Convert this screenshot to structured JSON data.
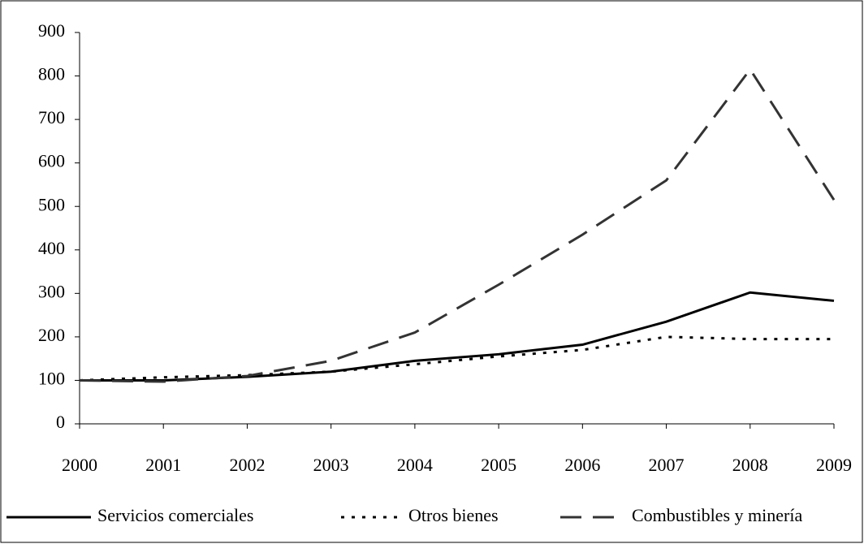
{
  "chart_data": {
    "type": "line",
    "categories": [
      "2000",
      "2001",
      "2002",
      "2003",
      "2004",
      "2005",
      "2006",
      "2007",
      "2008",
      "2009"
    ],
    "series": [
      {
        "name": "Servicios comerciales",
        "color": "#000000",
        "dash": "solid",
        "values": [
          100,
          100,
          108,
          120,
          145,
          160,
          182,
          235,
          302,
          283
        ]
      },
      {
        "name": "Otros bienes",
        "color": "#000000",
        "dash": "dotted",
        "values": [
          100,
          107,
          112,
          120,
          137,
          155,
          170,
          200,
          195,
          195
        ]
      },
      {
        "name": "Combustibles y minería",
        "color": "#333333",
        "dash": "dashed",
        "values": [
          100,
          97,
          110,
          145,
          210,
          320,
          435,
          560,
          815,
          515
        ]
      }
    ],
    "ylim": [
      0,
      900
    ],
    "yticks": [
      0,
      100,
      200,
      300,
      400,
      500,
      600,
      700,
      800,
      900
    ],
    "grid": false,
    "legend": "bottom"
  }
}
